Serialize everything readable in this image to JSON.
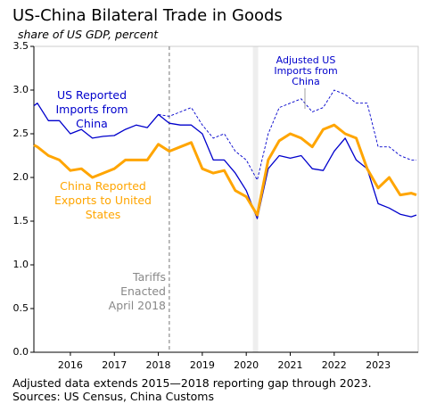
{
  "chart_data": {
    "type": "line",
    "title": "US-China Bilateral Trade in Goods",
    "subtitle": "share of US GDP, percent",
    "x": [
      2015.17,
      2015.25,
      2015.5,
      2015.75,
      2016.0,
      2016.25,
      2016.5,
      2016.75,
      2017.0,
      2017.25,
      2017.5,
      2017.75,
      2018.0,
      2018.25,
      2018.5,
      2018.75,
      2019.0,
      2019.25,
      2019.5,
      2019.75,
      2020.0,
      2020.25,
      2020.5,
      2020.75,
      2021.0,
      2021.25,
      2021.5,
      2021.75,
      2022.0,
      2022.25,
      2022.5,
      2022.75,
      2023.0,
      2023.25,
      2023.5,
      2023.75,
      2023.87
    ],
    "series": [
      {
        "name": "Adjusted US Imports from China",
        "color": "#0000cc",
        "dashed": true,
        "values": [
          null,
          null,
          null,
          null,
          null,
          null,
          null,
          null,
          null,
          null,
          null,
          null,
          2.72,
          2.7,
          2.75,
          2.8,
          2.6,
          2.45,
          2.5,
          2.3,
          2.2,
          1.97,
          2.5,
          2.8,
          2.85,
          2.9,
          2.75,
          2.8,
          3.0,
          2.95,
          2.85,
          2.85,
          2.35,
          2.35,
          2.25,
          2.2,
          2.2
        ]
      },
      {
        "name": "US Reported Imports from China",
        "color": "#0000cc",
        "dashed": false,
        "values": [
          2.82,
          2.85,
          2.65,
          2.65,
          2.5,
          2.55,
          2.45,
          2.47,
          2.48,
          2.55,
          2.6,
          2.57,
          2.72,
          2.62,
          2.6,
          2.6,
          2.5,
          2.2,
          2.2,
          2.05,
          1.85,
          1.53,
          2.1,
          2.25,
          2.22,
          2.25,
          2.1,
          2.08,
          2.3,
          2.45,
          2.2,
          2.1,
          1.7,
          1.65,
          1.58,
          1.55,
          1.57
        ]
      },
      {
        "name": "China Reported Exports to United States",
        "color": "#ffa500",
        "dashed": false,
        "values": [
          2.37,
          2.35,
          2.25,
          2.2,
          2.08,
          2.1,
          2.0,
          2.05,
          2.1,
          2.2,
          2.2,
          2.2,
          2.38,
          2.3,
          2.35,
          2.4,
          2.1,
          2.05,
          2.08,
          1.85,
          1.78,
          1.57,
          2.2,
          2.42,
          2.5,
          2.45,
          2.35,
          2.55,
          2.6,
          2.5,
          2.45,
          2.1,
          1.88,
          2.0,
          1.8,
          1.82,
          1.8
        ]
      }
    ],
    "xlim": [
      2015.17,
      2023.91
    ],
    "ylim": [
      0,
      3.5
    ],
    "xticks": [
      2016,
      2017,
      2018,
      2019,
      2020,
      2021,
      2022,
      2023
    ],
    "yticks": [
      {
        "value": 0,
        "label": "0.0"
      },
      {
        "value": 0.5,
        "label": "0.5"
      },
      {
        "value": 1,
        "label": "1.0"
      },
      {
        "value": 1.5,
        "label": "1.5"
      },
      {
        "value": 2,
        "label": "2.0"
      },
      {
        "value": 2.5,
        "label": "2.5"
      },
      {
        "value": 3,
        "label": "3.0"
      },
      {
        "value": 3.5,
        "label": "3.5"
      }
    ],
    "vline": {
      "x": 2018.25,
      "label": "Tariffs Enacted April 2018"
    },
    "shade": [
      2020.15,
      2020.27
    ],
    "footnotes": [
      "Adjusted data extends 2015—2018 reporting gap through 2023.",
      "Sources: US Census, China Customs"
    ]
  }
}
